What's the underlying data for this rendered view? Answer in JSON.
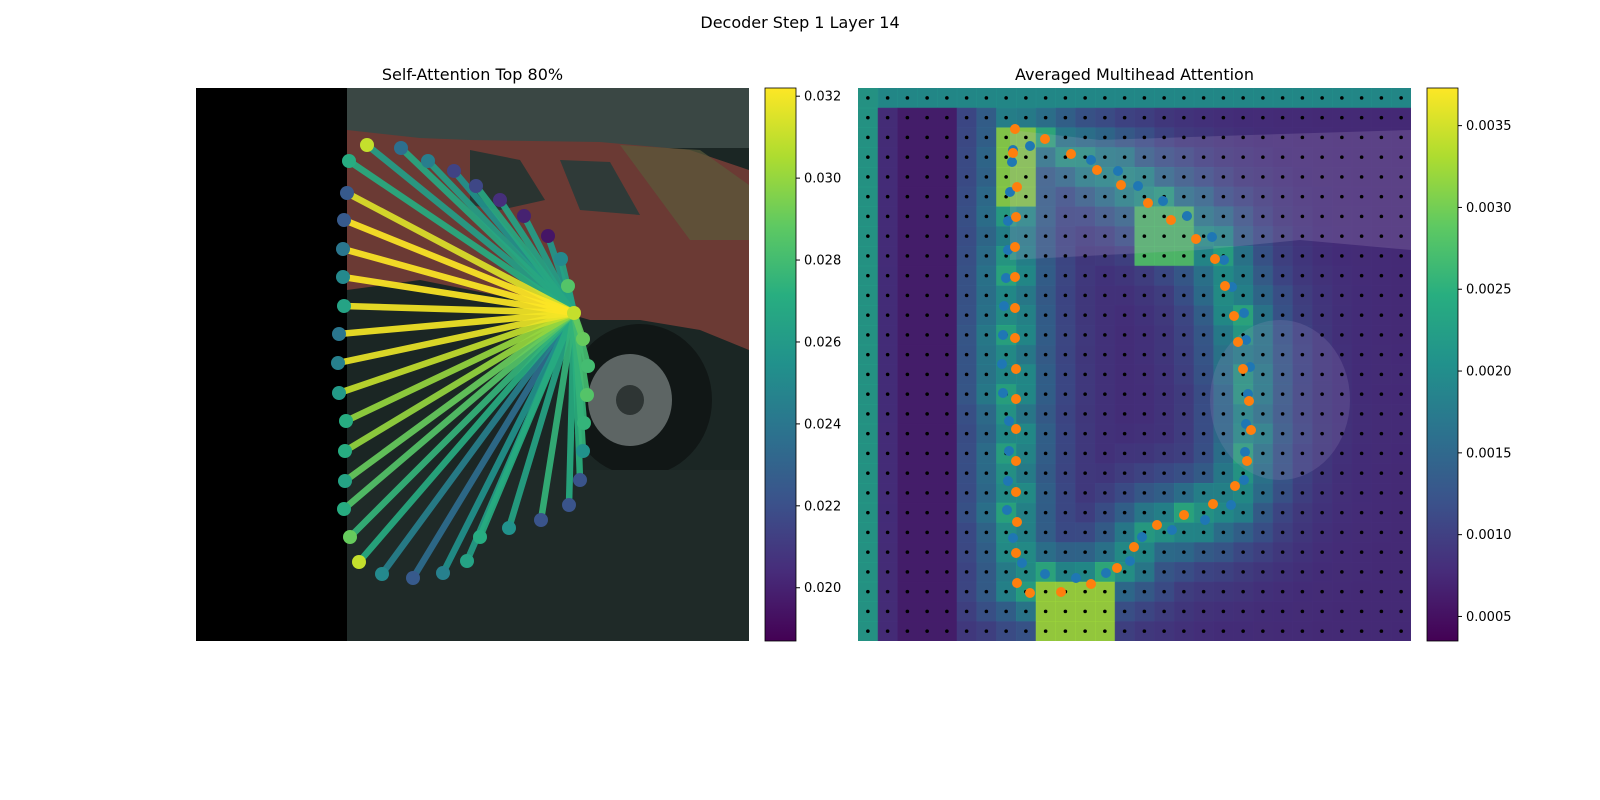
{
  "suptitle": "Decoder Step 1 Layer 14",
  "chart_data": [
    {
      "type": "scatter",
      "title": "Self-Attention Top 80%",
      "description_of_marks": "outline points colored by attention weight; lines from query point to attended points",
      "colormap": "viridis",
      "colorbar": {
        "range": [
          0.0187,
          0.0322
        ],
        "ticks": [
          0.02,
          0.022,
          0.024,
          0.026,
          0.028,
          0.03,
          0.032
        ],
        "tick_labels": [
          "0.020",
          "0.022",
          "0.024",
          "0.026",
          "0.028",
          "0.030",
          "0.032"
        ]
      },
      "points": [
        {
          "x": 367,
          "y": 145,
          "v": 0.031
        },
        {
          "x": 401,
          "y": 148,
          "v": 0.0236
        },
        {
          "x": 428,
          "y": 161,
          "v": 0.0244
        },
        {
          "x": 454,
          "y": 171,
          "v": 0.0214
        },
        {
          "x": 476,
          "y": 186,
          "v": 0.0216
        },
        {
          "x": 500,
          "y": 200,
          "v": 0.0205
        },
        {
          "x": 524,
          "y": 216,
          "v": 0.02
        },
        {
          "x": 548,
          "y": 236,
          "v": 0.0195
        },
        {
          "x": 561,
          "y": 259,
          "v": 0.025
        },
        {
          "x": 568,
          "y": 286,
          "v": 0.0285
        },
        {
          "x": 574,
          "y": 313,
          "v": 0.031
        },
        {
          "x": 583,
          "y": 339,
          "v": 0.029
        },
        {
          "x": 588,
          "y": 366,
          "v": 0.028
        },
        {
          "x": 587,
          "y": 395,
          "v": 0.0285
        },
        {
          "x": 584,
          "y": 423,
          "v": 0.0275
        },
        {
          "x": 583,
          "y": 451,
          "v": 0.0255
        },
        {
          "x": 580,
          "y": 480,
          "v": 0.0222
        },
        {
          "x": 569,
          "y": 505,
          "v": 0.0222
        },
        {
          "x": 541,
          "y": 520,
          "v": 0.0222
        },
        {
          "x": 509,
          "y": 528,
          "v": 0.0255
        },
        {
          "x": 480,
          "y": 537,
          "v": 0.027
        },
        {
          "x": 467,
          "y": 561,
          "v": 0.0265
        },
        {
          "x": 443,
          "y": 573,
          "v": 0.0245
        },
        {
          "x": 413,
          "y": 578,
          "v": 0.0225
        },
        {
          "x": 382,
          "y": 574,
          "v": 0.025
        },
        {
          "x": 359,
          "y": 562,
          "v": 0.031
        },
        {
          "x": 350,
          "y": 537,
          "v": 0.029
        },
        {
          "x": 344,
          "y": 509,
          "v": 0.027
        },
        {
          "x": 345,
          "y": 481,
          "v": 0.0265
        },
        {
          "x": 345,
          "y": 451,
          "v": 0.027
        },
        {
          "x": 346,
          "y": 421,
          "v": 0.027
        },
        {
          "x": 339,
          "y": 393,
          "v": 0.026
        },
        {
          "x": 338,
          "y": 363,
          "v": 0.0245
        },
        {
          "x": 339,
          "y": 334,
          "v": 0.024
        },
        {
          "x": 344,
          "y": 306,
          "v": 0.0265
        },
        {
          "x": 343,
          "y": 277,
          "v": 0.025
        },
        {
          "x": 343,
          "y": 249,
          "v": 0.024
        },
        {
          "x": 344,
          "y": 220,
          "v": 0.0225
        },
        {
          "x": 347,
          "y": 193,
          "v": 0.0225
        },
        {
          "x": 349,
          "y": 161,
          "v": 0.027
        }
      ],
      "query_point": {
        "x": 574,
        "y": 313
      },
      "lines": [
        {
          "x": 343,
          "y": 249,
          "v": 0.0322
        },
        {
          "x": 344,
          "y": 220,
          "v": 0.0322
        },
        {
          "x": 343,
          "y": 277,
          "v": 0.0322
        },
        {
          "x": 344,
          "y": 306,
          "v": 0.032
        },
        {
          "x": 339,
          "y": 334,
          "v": 0.032
        },
        {
          "x": 338,
          "y": 363,
          "v": 0.0318
        },
        {
          "x": 347,
          "y": 193,
          "v": 0.0315
        },
        {
          "x": 339,
          "y": 393,
          "v": 0.031
        },
        {
          "x": 346,
          "y": 421,
          "v": 0.03
        },
        {
          "x": 345,
          "y": 451,
          "v": 0.03
        },
        {
          "x": 345,
          "y": 481,
          "v": 0.029
        },
        {
          "x": 344,
          "y": 509,
          "v": 0.0285
        },
        {
          "x": 350,
          "y": 537,
          "v": 0.0275
        },
        {
          "x": 349,
          "y": 161,
          "v": 0.027
        },
        {
          "x": 367,
          "y": 145,
          "v": 0.0262
        },
        {
          "x": 401,
          "y": 148,
          "v": 0.0268
        },
        {
          "x": 428,
          "y": 161,
          "v": 0.0262
        },
        {
          "x": 454,
          "y": 171,
          "v": 0.0255
        },
        {
          "x": 476,
          "y": 186,
          "v": 0.0268
        },
        {
          "x": 500,
          "y": 200,
          "v": 0.0265
        },
        {
          "x": 524,
          "y": 216,
          "v": 0.0262
        },
        {
          "x": 548,
          "y": 236,
          "v": 0.0258
        },
        {
          "x": 561,
          "y": 259,
          "v": 0.0265
        },
        {
          "x": 568,
          "y": 286,
          "v": 0.0262
        },
        {
          "x": 583,
          "y": 339,
          "v": 0.029
        },
        {
          "x": 588,
          "y": 366,
          "v": 0.028
        },
        {
          "x": 587,
          "y": 395,
          "v": 0.028
        },
        {
          "x": 584,
          "y": 423,
          "v": 0.0275
        },
        {
          "x": 583,
          "y": 451,
          "v": 0.0275
        },
        {
          "x": 580,
          "y": 480,
          "v": 0.0272
        },
        {
          "x": 569,
          "y": 505,
          "v": 0.027
        },
        {
          "x": 541,
          "y": 520,
          "v": 0.0275
        },
        {
          "x": 509,
          "y": 528,
          "v": 0.0265
        },
        {
          "x": 480,
          "y": 537,
          "v": 0.027
        },
        {
          "x": 467,
          "y": 561,
          "v": 0.0262
        },
        {
          "x": 443,
          "y": 573,
          "v": 0.0255
        },
        {
          "x": 413,
          "y": 578,
          "v": 0.0235
        },
        {
          "x": 382,
          "y": 574,
          "v": 0.0245
        },
        {
          "x": 359,
          "y": 562,
          "v": 0.027
        }
      ]
    },
    {
      "type": "heatmap",
      "title": "Averaged Multihead Attention",
      "colormap": "viridis",
      "colorbar": {
        "range": [
          0.00035,
          0.00373
        ],
        "ticks": [
          0.0005,
          0.001,
          0.0015,
          0.002,
          0.0025,
          0.003,
          0.0035
        ],
        "tick_labels": [
          "0.0005",
          "0.0010",
          "0.0015",
          "0.0020",
          "0.0025",
          "0.0030",
          "0.0035"
        ]
      },
      "grid": {
        "cols": 28,
        "rows": 28
      },
      "blue_points": [
        [
          1013,
          150
        ],
        [
          1012,
          162
        ],
        [
          1010,
          192
        ],
        [
          1008,
          221
        ],
        [
          1008,
          250
        ],
        [
          1006,
          278
        ],
        [
          1004,
          306
        ],
        [
          1003,
          335
        ],
        [
          1002,
          364
        ],
        [
          1003,
          393
        ],
        [
          1009,
          421
        ],
        [
          1009,
          451
        ],
        [
          1008,
          481
        ],
        [
          1007,
          510
        ],
        [
          1013,
          538
        ],
        [
          1022,
          563
        ],
        [
          1030,
          146
        ],
        [
          1091,
          160
        ],
        [
          1118,
          171
        ],
        [
          1138,
          186
        ],
        [
          1163,
          201
        ],
        [
          1187,
          216
        ],
        [
          1212,
          237
        ],
        [
          1224,
          260
        ],
        [
          1232,
          287
        ],
        [
          1244,
          313
        ],
        [
          1246,
          340
        ],
        [
          1250,
          367
        ],
        [
          1248,
          394
        ],
        [
          1246,
          424
        ],
        [
          1245,
          452
        ],
        [
          1244,
          480
        ],
        [
          1231,
          505
        ],
        [
          1205,
          520
        ],
        [
          1172,
          530
        ],
        [
          1142,
          537
        ],
        [
          1130,
          561
        ],
        [
          1106,
          573
        ],
        [
          1076,
          578
        ],
        [
          1045,
          574
        ]
      ],
      "orange_points": [
        [
          1015,
          129
        ],
        [
          1013,
          153
        ],
        [
          1017,
          187
        ],
        [
          1016,
          217
        ],
        [
          1015,
          247
        ],
        [
          1015,
          277
        ],
        [
          1015,
          308
        ],
        [
          1015,
          338
        ],
        [
          1016,
          369
        ],
        [
          1016,
          399
        ],
        [
          1016,
          429
        ],
        [
          1016,
          461
        ],
        [
          1016,
          492
        ],
        [
          1017,
          522
        ],
        [
          1016,
          553
        ],
        [
          1017,
          583
        ],
        [
          1030,
          593
        ],
        [
          1045,
          139
        ],
        [
          1071,
          154
        ],
        [
          1097,
          170
        ],
        [
          1121,
          185
        ],
        [
          1148,
          203
        ],
        [
          1171,
          220
        ],
        [
          1196,
          239
        ],
        [
          1215,
          259
        ],
        [
          1225,
          286
        ],
        [
          1234,
          316
        ],
        [
          1238,
          342
        ],
        [
          1243,
          369
        ],
        [
          1249,
          401
        ],
        [
          1251,
          430
        ],
        [
          1247,
          461
        ],
        [
          1235,
          486
        ],
        [
          1213,
          504
        ],
        [
          1184,
          515
        ],
        [
          1157,
          525
        ],
        [
          1134,
          547
        ],
        [
          1117,
          568
        ],
        [
          1091,
          584
        ],
        [
          1061,
          592
        ]
      ]
    }
  ]
}
